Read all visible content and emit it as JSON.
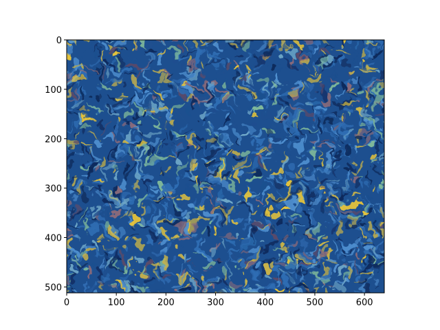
{
  "chart_data": {
    "type": "heatmap",
    "title": "",
    "xlabel": "",
    "ylabel": "",
    "image_width": 640,
    "image_height": 512,
    "xlim": [
      0,
      640
    ],
    "ylim": [
      512,
      0
    ],
    "y_axis_inverted": true,
    "grid": false,
    "legend": "none",
    "xticks": [
      0,
      100,
      200,
      300,
      400,
      500,
      600
    ],
    "xtick_labels": [
      "0",
      "100",
      "200",
      "300",
      "400",
      "500",
      "600"
    ],
    "yticks": [
      0,
      100,
      200,
      300,
      400,
      500
    ],
    "ytick_labels": [
      "0",
      "100",
      "200",
      "300",
      "400",
      "500"
    ],
    "image_content": "swirling brushstroke texture (Van Gogh style)",
    "palette": [
      "#0d2a5c",
      "#1d4f8f",
      "#2f6db3",
      "#4f8fcf",
      "#6fa8c8",
      "#7fb89a",
      "#c9b34a",
      "#e8c53a",
      "#8a6a7a",
      "#5a4a6a"
    ]
  }
}
